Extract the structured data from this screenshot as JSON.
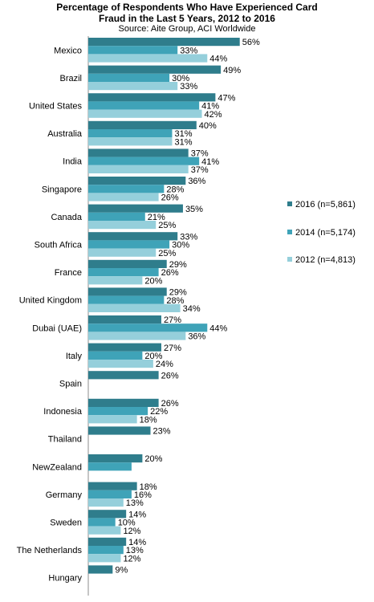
{
  "chart_data": {
    "type": "bar",
    "orientation": "horizontal",
    "title": "Percentage of Respondents Who Have Experienced Card Fraud in the Last 5 Years, 2012 to 2016",
    "subtitle": "Source: Aite Group, ACI Worldwide",
    "categories": [
      "Mexico",
      "Brazil",
      "United States",
      "Australia",
      "India",
      "Singapore",
      "Canada",
      "South Africa",
      "France",
      "United Kingdom",
      "Dubai (UAE)",
      "Italy",
      "Spain",
      "Indonesia",
      "Thailand",
      "NewZealand",
      "Germany",
      "Sweden",
      "The Netherlands",
      "Hungary"
    ],
    "series": [
      {
        "name": "2016 (n=5,861)",
        "color": "#2f7d8c",
        "values": [
          56,
          49,
          47,
          40,
          37,
          36,
          35,
          33,
          29,
          29,
          27,
          27,
          26,
          26,
          23,
          20,
          18,
          14,
          14,
          9
        ],
        "labels": [
          "56%",
          "49%",
          "47%",
          "40%",
          "37%",
          "36%",
          "35%",
          "33%",
          "29%",
          "29%",
          "27%",
          "27%",
          "26%",
          "26%",
          "23%",
          "20%",
          "18%",
          "14%",
          "14%",
          "9%"
        ]
      },
      {
        "name": "2014 (n=5,174)",
        "color": "#3fa3b8",
        "values": [
          33,
          30,
          41,
          31,
          41,
          28,
          21,
          30,
          26,
          28,
          44,
          20,
          null,
          22,
          null,
          16,
          16,
          10,
          13,
          null
        ],
        "labels": [
          "33%",
          "30%",
          "41%",
          "31%",
          "41%",
          "28%",
          "21%",
          "30%",
          "26%",
          "28%",
          "44%",
          "20%",
          "",
          "22%",
          "",
          "",
          "16%",
          "10%",
          "13%",
          ""
        ]
      },
      {
        "name": "2012 (n=4,813)",
        "color": "#95cfdb",
        "values": [
          44,
          33,
          42,
          31,
          37,
          26,
          25,
          25,
          20,
          34,
          36,
          24,
          null,
          18,
          null,
          null,
          13,
          12,
          12,
          null
        ],
        "labels": [
          "44%",
          "33%",
          "42%",
          "31%",
          "37%",
          "26%",
          "25%",
          "25%",
          "20%",
          "34%",
          "36%",
          "24%",
          "",
          "18%",
          "",
          "",
          "13%",
          "12%",
          "12%",
          ""
        ]
      }
    ],
    "xlim": [
      0,
      60
    ],
    "grid": false,
    "legend": "right"
  }
}
